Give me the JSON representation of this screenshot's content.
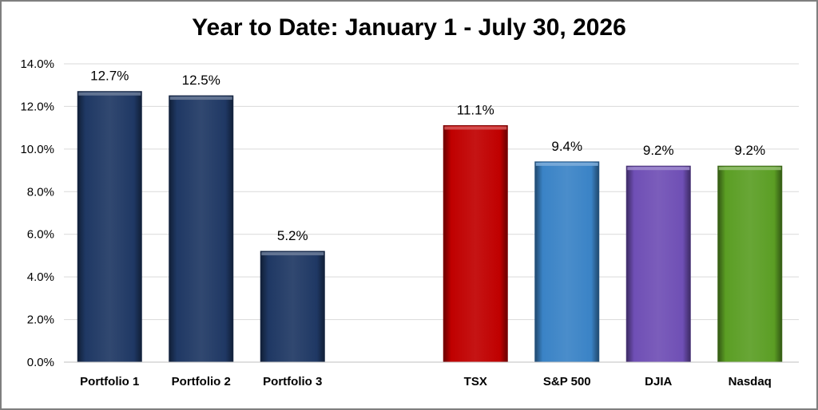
{
  "chart_data": {
    "type": "bar",
    "title": "Year to Date: January 1 - July 30, 2026",
    "xlabel": "",
    "ylabel": "",
    "ylim": [
      0,
      14
    ],
    "y_ticks": [
      "0.0%",
      "2.0%",
      "4.0%",
      "6.0%",
      "8.0%",
      "10.0%",
      "12.0%",
      "14.0%"
    ],
    "grid": true,
    "legend": "none",
    "categories": [
      "Portfolio 1",
      "Portfolio 2",
      "Portfolio 3",
      "",
      "TSX",
      "S&P 500",
      "DJIA",
      "Nasdaq"
    ],
    "values": [
      12.7,
      12.5,
      5.2,
      null,
      11.1,
      9.4,
      9.2,
      9.2
    ],
    "data_labels": [
      "12.7%",
      "12.5%",
      "5.2%",
      "",
      "11.1%",
      "9.4%",
      "9.2%",
      "9.2%"
    ],
    "colors": [
      "#1f3864",
      "#1f3864",
      "#1f3864",
      "",
      "#c00000",
      "#3a83c6",
      "#6f4fb5",
      "#5b9e24"
    ]
  }
}
